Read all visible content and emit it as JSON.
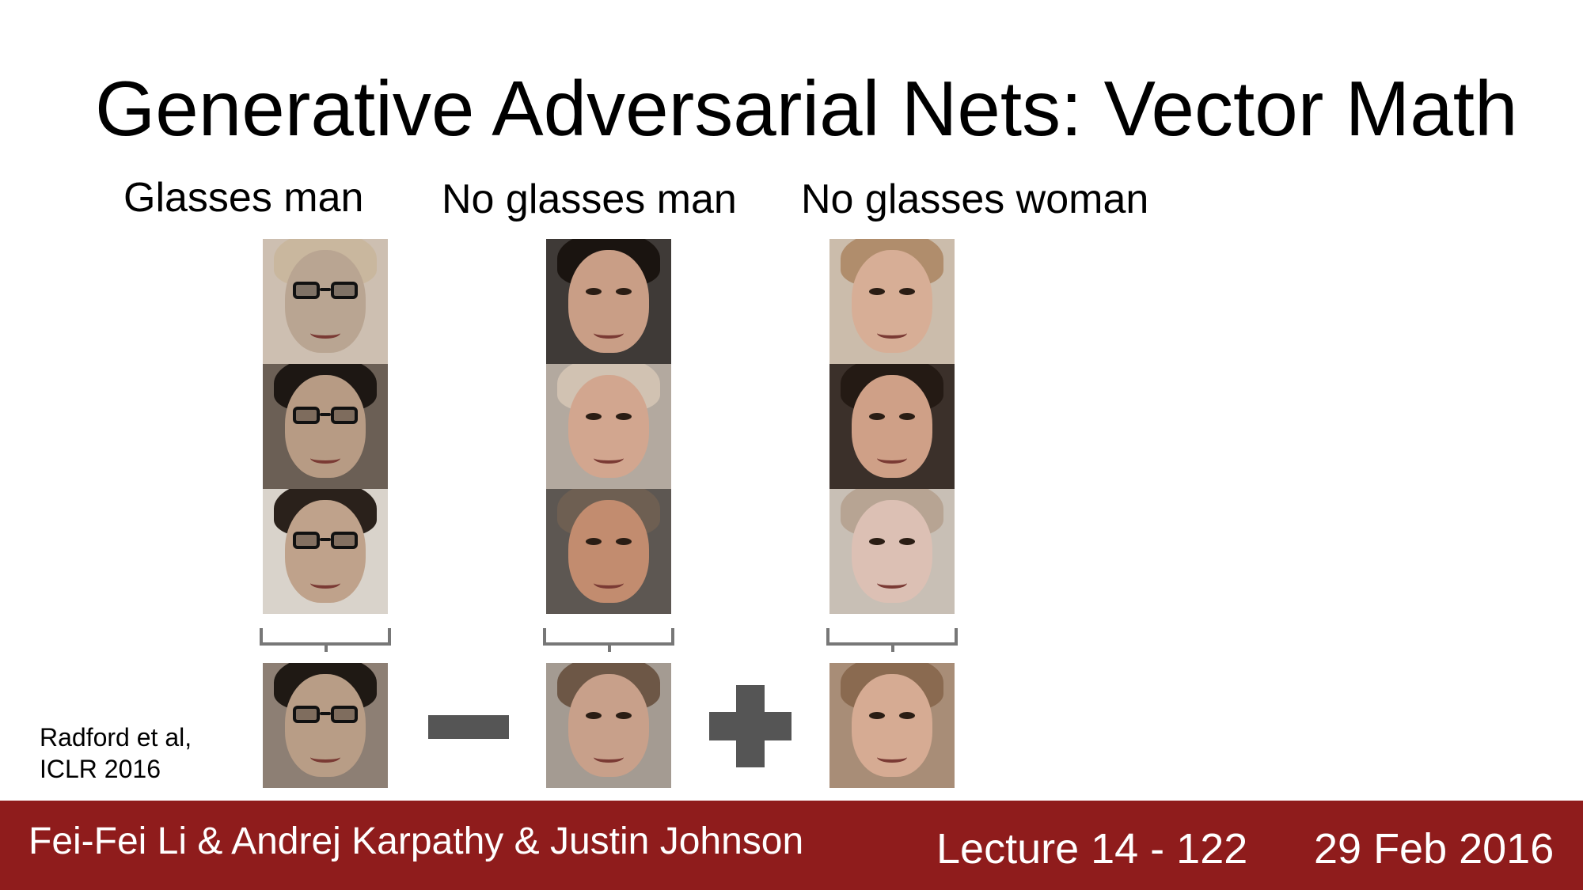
{
  "slide": {
    "title": "Generative Adversarial Nets: Vector Math",
    "columns": [
      {
        "label": "Glasses man"
      },
      {
        "label": "No glasses man"
      },
      {
        "label": "No glasses woman"
      }
    ],
    "operators": {
      "minus": "minus-sign",
      "plus": "plus-sign"
    },
    "citation": {
      "line1": "Radford et al,",
      "line2": "ICLR 2016"
    }
  },
  "footer": {
    "authors": "Fei-Fei Li & Andrej Karpathy & Justin Johnson",
    "lecture": "Lecture 14 - 122",
    "date": "29 Feb 2016"
  },
  "colors": {
    "footer_background": "#8f1c1c",
    "operator": "#555555"
  }
}
